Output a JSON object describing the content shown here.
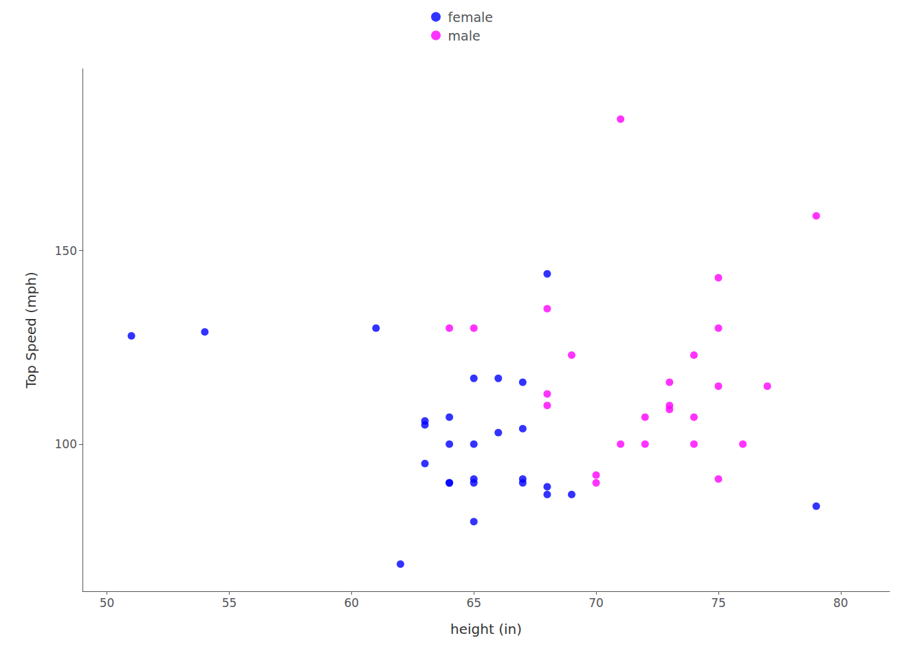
{
  "chart_data": {
    "type": "scatter",
    "xlabel": "height (in)",
    "ylabel": "Top Speed (mph)",
    "series": [
      {
        "name": "female",
        "color": "#0000ff",
        "x": [
          51,
          54,
          61,
          62,
          63,
          63,
          63,
          64,
          64,
          64,
          64,
          65,
          65,
          65,
          65,
          65,
          66,
          66,
          67,
          67,
          67,
          67,
          68,
          68,
          68,
          69,
          79
        ],
        "values": [
          128,
          129,
          130,
          69,
          95,
          105,
          106,
          90,
          90,
          100,
          107,
          80,
          90,
          91,
          100,
          117,
          103,
          117,
          90,
          91,
          104,
          116,
          87,
          89,
          144,
          87,
          84
        ]
      },
      {
        "name": "male",
        "color": "#ff00ff",
        "x": [
          64,
          65,
          68,
          68,
          68,
          69,
          70,
          70,
          71,
          71,
          72,
          72,
          73,
          73,
          73,
          74,
          74,
          74,
          75,
          75,
          75,
          75,
          76,
          77,
          79
        ],
        "values": [
          130,
          130,
          110,
          113,
          135,
          123,
          90,
          92,
          184,
          100,
          100,
          107,
          109,
          110,
          116,
          100,
          107,
          123,
          91,
          115,
          130,
          143,
          100,
          115,
          159
        ]
      }
    ],
    "xlim": [
      49,
      82
    ],
    "ylim": [
      62,
      197
    ],
    "xticks": [
      50,
      55,
      60,
      65,
      70,
      75,
      80
    ],
    "yticks": [
      100,
      150
    ],
    "grid": false,
    "legend": "top",
    "marker": "circle"
  }
}
